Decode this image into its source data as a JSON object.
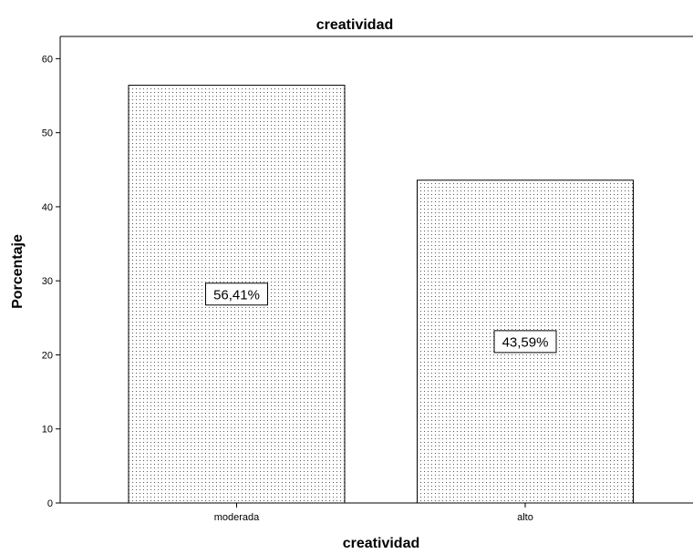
{
  "chart_data": {
    "type": "bar",
    "title": "creatividad",
    "xlabel": "creatividad",
    "ylabel": "Porcentaje",
    "categories": [
      "moderada",
      "alto"
    ],
    "values": [
      56.41,
      43.59
    ],
    "data_labels": [
      "56,41%",
      "43,59%"
    ],
    "ylim": [
      0,
      63
    ],
    "yticks": [
      0,
      10,
      20,
      30,
      40,
      50,
      60
    ],
    "grid": false,
    "legend": "none",
    "bar_fill": "dotted",
    "colors": {
      "bar_fill": "#ffffff",
      "bar_stroke": "#000000",
      "dot": "#555555",
      "frame": "#000000"
    }
  }
}
